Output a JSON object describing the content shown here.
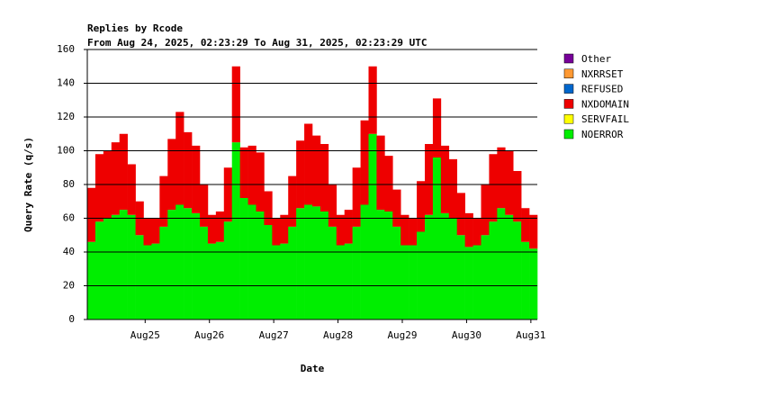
{
  "chart_data": {
    "type": "stacked-bar",
    "title": "Replies by Rcode",
    "subtitle": "From Aug 24, 2025, 02:23:29 To Aug 31, 2025, 02:23:29 UTC",
    "ylabel": "Query Rate (q/s)",
    "xlabel": "Date",
    "xlim": [
      24.1,
      31.1
    ],
    "xticks": [
      {
        "value": 25,
        "label": "Aug25"
      },
      {
        "value": 26,
        "label": "Aug26"
      },
      {
        "value": 27,
        "label": "Aug27"
      },
      {
        "value": 28,
        "label": "Aug28"
      },
      {
        "value": 29,
        "label": "Aug29"
      },
      {
        "value": 30,
        "label": "Aug30"
      },
      {
        "value": 31,
        "label": "Aug31"
      }
    ],
    "ylim": [
      0,
      160
    ],
    "yticks": [
      0,
      20,
      40,
      60,
      80,
      100,
      120,
      140,
      160
    ],
    "grid": true,
    "bar_width": 0.125,
    "x": [
      24.1,
      24.225,
      24.35,
      24.475,
      24.6,
      24.725,
      24.85,
      24.975,
      25.1,
      25.225,
      25.35,
      25.475,
      25.6,
      25.725,
      25.85,
      25.975,
      26.1,
      26.225,
      26.35,
      26.475,
      26.6,
      26.725,
      26.85,
      26.975,
      27.1,
      27.225,
      27.35,
      27.475,
      27.6,
      27.725,
      27.85,
      27.975,
      28.1,
      28.225,
      28.35,
      28.475,
      28.6,
      28.725,
      28.85,
      28.975,
      29.1,
      29.225,
      29.35,
      29.475,
      29.6,
      29.725,
      29.85,
      29.975,
      30.1,
      30.225,
      30.35,
      30.475,
      30.6,
      30.725,
      30.85,
      30.975
    ],
    "series": [
      {
        "name": "NOERROR",
        "color": "#00ee00",
        "values": [
          46,
          58,
          60,
          62,
          65,
          62,
          50,
          44,
          45,
          55,
          65,
          68,
          66,
          63,
          55,
          45,
          46,
          58,
          105,
          72,
          68,
          64,
          56,
          44,
          45,
          55,
          66,
          68,
          67,
          64,
          55,
          44,
          45,
          55,
          68,
          110,
          65,
          64,
          55,
          44,
          44,
          52,
          62,
          96,
          63,
          60,
          50,
          43,
          44,
          50,
          58,
          66,
          62,
          58,
          46,
          42
        ]
      },
      {
        "name": "SERVFAIL",
        "color": "#ffff00",
        "values": [
          0,
          0,
          0,
          0,
          0,
          0,
          0,
          0,
          0,
          0,
          0,
          0,
          0,
          0,
          0,
          0,
          0,
          0,
          0,
          0,
          0,
          0,
          0,
          0,
          0,
          0,
          0,
          0,
          0,
          0,
          0,
          0,
          0,
          0,
          0,
          0,
          0,
          0,
          0,
          0,
          0,
          0,
          0,
          0,
          0,
          0,
          0,
          0,
          0,
          0,
          0,
          0,
          0,
          0,
          0,
          0
        ]
      },
      {
        "name": "NXDOMAIN",
        "color": "#ee0000",
        "values": [
          32,
          40,
          40,
          43,
          45,
          30,
          20,
          16,
          15,
          30,
          42,
          55,
          45,
          40,
          25,
          17,
          18,
          32,
          45,
          30,
          35,
          35,
          20,
          16,
          17,
          30,
          40,
          48,
          42,
          40,
          25,
          18,
          20,
          35,
          50,
          40,
          44,
          33,
          22,
          18,
          16,
          30,
          42,
          35,
          40,
          35,
          25,
          20,
          16,
          30,
          40,
          36,
          38,
          30,
          20,
          20
        ]
      },
      {
        "name": "REFUSED",
        "color": "#0066cc",
        "values": [
          0,
          0,
          0,
          0,
          0,
          0,
          0,
          0,
          0,
          0,
          0,
          0,
          0,
          0,
          0,
          0,
          0,
          0,
          0,
          0,
          0,
          0,
          0,
          0,
          0,
          0,
          0,
          0,
          0,
          0,
          0,
          0,
          0,
          0,
          0,
          0,
          0,
          0,
          0,
          0,
          0,
          0,
          0,
          0,
          0,
          0,
          0,
          0,
          0,
          0,
          0,
          0,
          0,
          0,
          0,
          0
        ]
      },
      {
        "name": "NXRRSET",
        "color": "#ff9933",
        "values": [
          0,
          0,
          0,
          0,
          0,
          0,
          0,
          0,
          0,
          0,
          0,
          0,
          0,
          0,
          0,
          0,
          0,
          0,
          0,
          0,
          0,
          0,
          0,
          0,
          0,
          0,
          0,
          0,
          0,
          0,
          0,
          0,
          0,
          0,
          0,
          0,
          0,
          0,
          0,
          0,
          0,
          0,
          0,
          0,
          0,
          0,
          0,
          0,
          0,
          0,
          0,
          0,
          0,
          0,
          0,
          0
        ]
      },
      {
        "name": "Other",
        "color": "#770099",
        "values": [
          0,
          0,
          0,
          0,
          0,
          0,
          0,
          0,
          0,
          0,
          0,
          0,
          0,
          0,
          0,
          0,
          0,
          0,
          0,
          0,
          0,
          0,
          0,
          0,
          0,
          0,
          0,
          0,
          0,
          0,
          0,
          0,
          0,
          0,
          0,
          0,
          0,
          0,
          0,
          0,
          0,
          0,
          0,
          0,
          0,
          0,
          0,
          0,
          0,
          0,
          0,
          0,
          0,
          0,
          0,
          0
        ]
      }
    ]
  }
}
